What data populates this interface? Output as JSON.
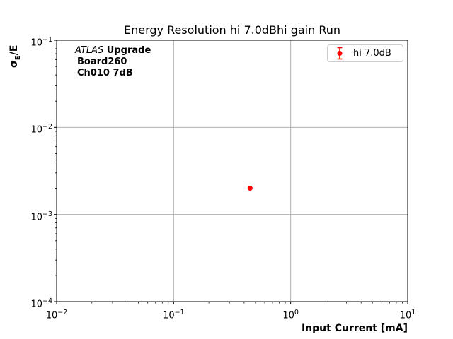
{
  "figure": {
    "title": "Energy Resolution hi 7.0dBhi gain Run",
    "xlabel": "Input Current [mA]",
    "ylabel_sigma": "σ",
    "ylabel_sub": "E",
    "ylabel_rest": "/E",
    "annotation": {
      "line1_italic": "ATLAS",
      "line1_bold": " Upgrade",
      "line2": "Board260",
      "line3": "Ch010 7dB"
    },
    "legend": {
      "entries": [
        {
          "label": "hi 7.0dB",
          "marker": "errorbar-circle",
          "color": "#ff0000"
        }
      ]
    },
    "colors": {
      "series": "#ff0000",
      "grid": "#b0b0b0",
      "spine": "#000000",
      "legend_border": "#cccccc",
      "background": "#ffffff"
    }
  },
  "chart_data": {
    "type": "scatter",
    "title": "Energy Resolution hi 7.0dBhi gain Run",
    "xlabel": "Input Current [mA]",
    "ylabel": "σE/E",
    "x_scale": "log",
    "y_scale": "log",
    "xlim": [
      0.01,
      10
    ],
    "ylim": [
      0.0001,
      0.1
    ],
    "x_tick_exponents": [
      -2,
      -1,
      0,
      1
    ],
    "y_tick_exponents": [
      -1,
      -2,
      -3,
      -4
    ],
    "grid": true,
    "legend_position": "upper right",
    "series": [
      {
        "name": "hi 7.0dB",
        "color": "#ff0000",
        "marker": "circle",
        "points": [
          {
            "x": 0.45,
            "y": 0.002
          }
        ]
      }
    ]
  }
}
